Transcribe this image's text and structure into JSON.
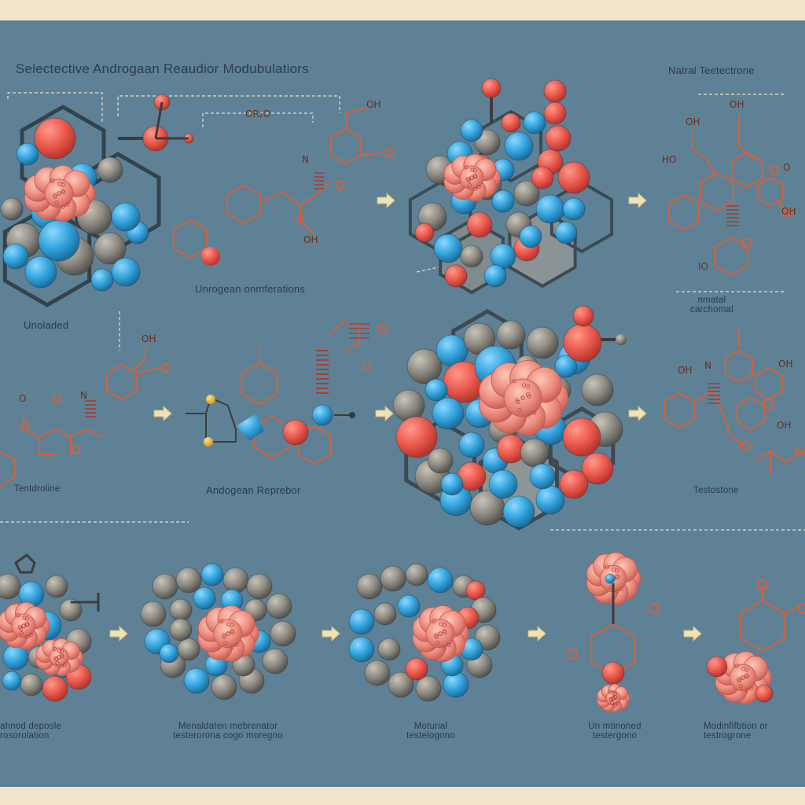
{
  "title": "Selectective Androgaan Reaudior Modubulatiors",
  "labels": {
    "natural_testosterone": "Natral Teetectrone",
    "unobaded": "Unoladed",
    "unrogean_conformations": "Unrogean onmferations",
    "natural_conformal": "nmatal\ncarchomal",
    "tentadroline": "Tentdroline",
    "androgen_receptor": "Andogean Reprebor",
    "testosterone": "Testostone",
    "bottom_1": "ahnod deposle\nrosorolation",
    "bottom_2": "Menaldaten mebrenator\ntesterorona cogo moregno",
    "bottom_3": "Moturial\ntestelogono",
    "bottom_4": "Un mtinoned\ntestergono",
    "bottom_5": "Modinfifbtion or\ntestrogrone"
  },
  "chem_labels": {
    "c1": "OH",
    "c2": "OR₂O",
    "c3": "N",
    "c4": "OH",
    "c5": "OH",
    "c6": "OH",
    "c7": "HO",
    "c8": "OH",
    "c9": "IO",
    "c10": "O",
    "c11": "OH",
    "c12": "N",
    "c13": "OH",
    "c14": "OH",
    "c15": "OH",
    "c16": "N",
    "c17": "O"
  },
  "colors": {
    "background": "#5f8196",
    "frame": "#f4e6cc",
    "atom_red": "#ec5b4f",
    "atom_blue": "#35a6de",
    "atom_gray": "#8f8c84",
    "bond_line": "#d4623c",
    "protein_pink": "#e8877d",
    "arrow": "#efe2b3"
  }
}
